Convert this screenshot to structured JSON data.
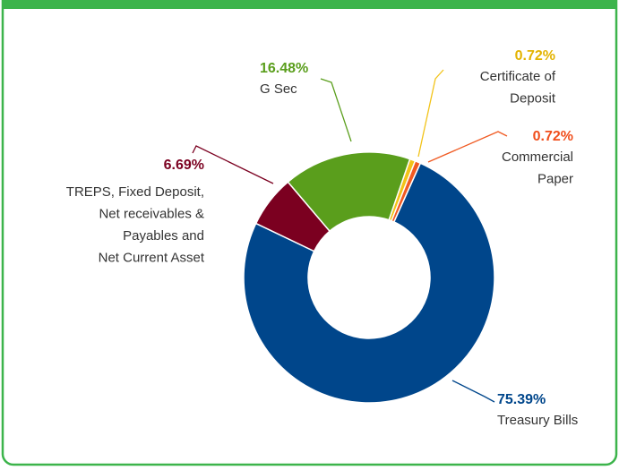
{
  "chart_data": {
    "type": "donut",
    "categories": [
      [
        "Certificate of",
        "Deposit"
      ],
      [
        "Commercial",
        "Paper"
      ],
      [
        "Treasury Bills"
      ],
      [
        "TREPS, Fixed Deposit,",
        "Net receivables &",
        "Payables and",
        "Net Current Asset"
      ],
      [
        "G Sec"
      ]
    ],
    "values": [
      0.72,
      0.72,
      75.39,
      6.69,
      16.48
    ],
    "value_labels": [
      "0.72%",
      "0.72%",
      "75.39%",
      "6.69%",
      "16.48%"
    ],
    "colors": [
      "#f2c318",
      "#f05a22",
      "#00468b",
      "#7b0020",
      "#5a9e1c"
    ],
    "label_colors": [
      "#e3b300",
      "#f04e1c",
      "#00468b",
      "#7b0020",
      "#5a9e1c"
    ]
  }
}
